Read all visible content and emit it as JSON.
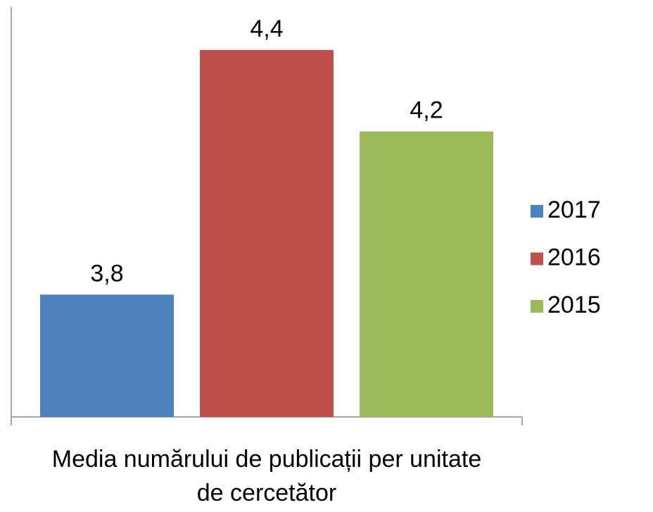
{
  "chart_data": {
    "type": "bar",
    "categories": [
      "Media numărului de publicații per unitate de cercetător"
    ],
    "series": [
      {
        "name": "2017",
        "color": "#4f81bd",
        "values": [
          3.8
        ],
        "value_labels": [
          "3,8"
        ]
      },
      {
        "name": "2016",
        "color": "#c0504d",
        "values": [
          4.4
        ],
        "value_labels": [
          "4,4"
        ]
      },
      {
        "name": "2015",
        "color": "#9bbb59",
        "values": [
          4.2
        ],
        "value_labels": [
          "4,2"
        ]
      }
    ],
    "ylim": [
      3.5,
      4.5
    ],
    "grid": false,
    "legend": "right"
  }
}
